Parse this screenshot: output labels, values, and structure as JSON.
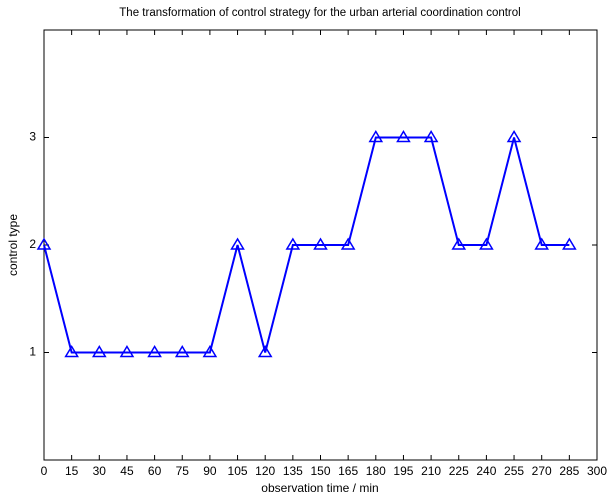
{
  "chart_data": {
    "type": "line",
    "title": "The transformation of control strategy for the urban arterial coordination control",
    "x_label": "observation time / min",
    "y_label": "control type",
    "x": [
      0,
      15,
      30,
      45,
      60,
      75,
      90,
      105,
      120,
      135,
      150,
      165,
      180,
      195,
      210,
      225,
      240,
      255,
      270,
      285
    ],
    "series": [
      {
        "color": "#0000ff",
        "values": [
          2,
          1,
          1,
          1,
          1,
          1,
          1,
          2,
          1,
          2,
          2,
          2,
          3,
          3,
          3,
          2,
          2,
          3,
          2,
          2
        ]
      }
    ],
    "xlim": [
      0,
      300
    ],
    "xticks": [
      0,
      15,
      30,
      45,
      60,
      75,
      90,
      105,
      120,
      135,
      150,
      165,
      180,
      195,
      210,
      225,
      240,
      255,
      270,
      285,
      300
    ],
    "ylim": [
      0,
      4
    ],
    "yticks": [
      1,
      2,
      3
    ],
    "marker": "triangle",
    "grid": false
  }
}
